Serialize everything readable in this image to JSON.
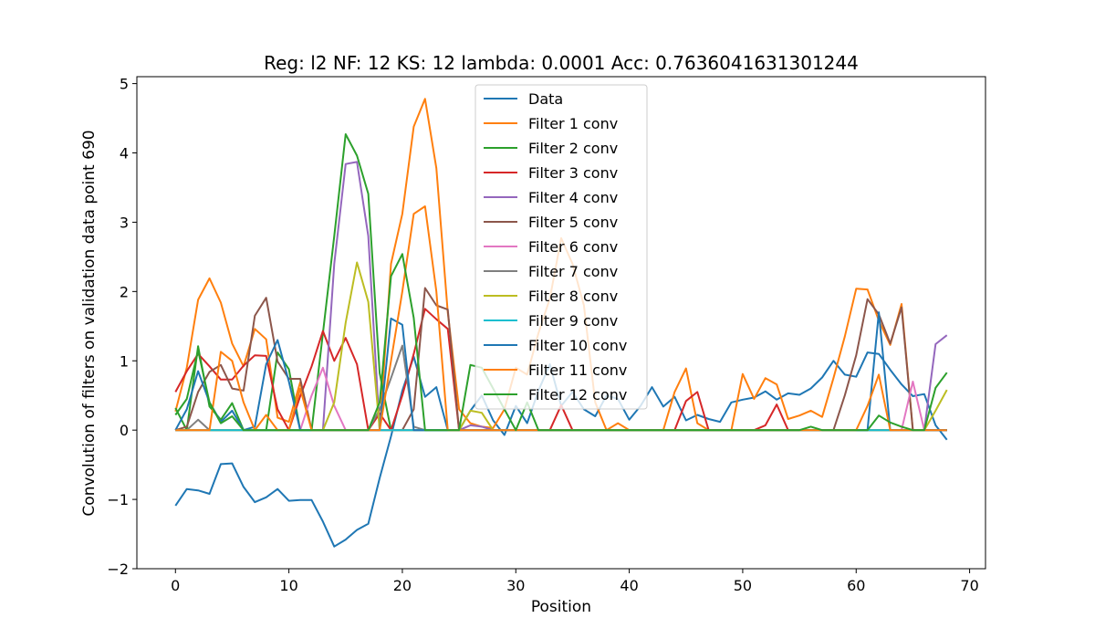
{
  "chart_data": {
    "type": "line",
    "title": "Reg: l2  NF: 12  KS: 12  lambda: 0.0001 Acc: 0.7636041631301244",
    "xlabel": "Position",
    "ylabel": "Convolution of filters on validation data point 690",
    "xlim": [
      -3.4,
      71.4
    ],
    "ylim": [
      -2,
      5.1
    ],
    "xticks": [
      0,
      10,
      20,
      30,
      40,
      50,
      60,
      70
    ],
    "yticks": [
      -2,
      -1,
      0,
      1,
      2,
      3,
      4,
      5
    ],
    "legend_position": "upper center",
    "grid": false,
    "series": [
      {
        "name": "Data",
        "color": "#1f77b4",
        "values": [
          -1.09,
          -0.85,
          -0.87,
          -0.92,
          -0.49,
          -0.48,
          -0.82,
          -1.04,
          -0.97,
          -0.85,
          -1.02,
          -1.01,
          -1.01,
          -1.32,
          -1.68,
          -1.58,
          -1.44,
          -1.35,
          -0.69,
          -0.09,
          0.57,
          1.06,
          0.48,
          0.62,
          0.0,
          0.0,
          0.28,
          0.5,
          0.14,
          -0.07,
          0.35,
          0.1,
          0.57,
          0.95,
          0.35,
          0.55,
          0.3,
          0.2,
          0.5,
          0.45,
          0.15,
          0.35,
          0.62,
          0.34,
          0.48,
          0.14,
          0.22,
          0.16,
          0.12,
          0.4,
          0.44,
          0.47,
          0.56,
          0.44,
          0.53,
          0.51,
          0.6,
          0.76,
          1.0,
          0.8,
          0.77,
          1.12,
          1.1,
          0.87,
          0.66,
          0.49,
          0.52,
          0.07,
          -0.14
        ]
      },
      {
        "name": "Filter 1 conv",
        "color": "#ff7f0e",
        "values": [
          0.27,
          0.9,
          1.88,
          2.19,
          1.84,
          1.25,
          0.92,
          1.46,
          1.31,
          0.18,
          0.12,
          0.69,
          0.0,
          0.0,
          0.0,
          0.0,
          0.0,
          0.0,
          0.0,
          2.4,
          3.12,
          4.38,
          4.78,
          3.78,
          1.7,
          0.3,
          0.1,
          0.05,
          0.03,
          0.3,
          0.9,
          0.8,
          1.4,
          1.9,
          2.77,
          2.4,
          1.8,
          0.4,
          0.0,
          0.1,
          0.0,
          0.0,
          0.0,
          0.0,
          0.55,
          0.89,
          0.1,
          0.0,
          0.0,
          0.0,
          0.81,
          0.45,
          0.75,
          0.66,
          0.16,
          0.21,
          0.28,
          0.19,
          0.75,
          1.35,
          2.04,
          2.03,
          1.58,
          1.23,
          1.82,
          0.0,
          0.0,
          0.0,
          0.0
        ]
      },
      {
        "name": "Filter 2 conv",
        "color": "#2ca02c",
        "values": [
          0.32,
          0.0,
          1.21,
          0.34,
          0.15,
          0.39,
          0.0,
          0.0,
          0.0,
          1.12,
          0.88,
          0.0,
          0.0,
          1.4,
          2.8,
          4.27,
          3.96,
          3.41,
          0.82,
          0.0,
          0.0,
          0.0,
          0.0,
          0.0,
          0.0,
          0.0,
          0.0,
          0.0,
          0.0,
          0.0,
          0.0,
          0.0,
          0.0,
          0.0,
          0.0,
          0.0,
          0.0,
          0.0,
          0.0,
          0.0,
          0.0,
          0.0,
          0.0,
          0.0,
          0.0,
          0.0,
          0.0,
          0.0,
          0.0,
          0.0,
          0.0,
          0.0,
          0.0,
          0.0,
          0.0,
          0.0,
          0.0,
          0.0,
          0.0,
          0.0,
          0.0,
          0.0,
          0.0,
          0.0,
          0.0,
          0.0,
          0.0,
          0.0,
          0.0
        ]
      },
      {
        "name": "Filter 3 conv",
        "color": "#d62728",
        "values": [
          0.55,
          0.85,
          1.1,
          0.92,
          0.73,
          0.73,
          0.93,
          1.08,
          1.07,
          0.3,
          0.0,
          0.49,
          0.92,
          1.43,
          1.0,
          1.33,
          0.95,
          0.0,
          0.24,
          0.0,
          0.5,
          1.1,
          1.75,
          1.6,
          1.46,
          0.0,
          0.0,
          0.0,
          0.0,
          0.0,
          0.0,
          0.0,
          0.0,
          0.0,
          0.36,
          0.0,
          0.0,
          0.0,
          0.0,
          0.0,
          0.0,
          0.0,
          0.0,
          0.0,
          0.0,
          0.42,
          0.55,
          0.0,
          0.0,
          0.0,
          0.0,
          0.0,
          0.07,
          0.37,
          0.0,
          0.0,
          0.0,
          0.0,
          0.0,
          0.0,
          0.0,
          0.0,
          0.0,
          0.0,
          0.0,
          0.0,
          0.0,
          0.0,
          0.0
        ]
      },
      {
        "name": "Filter 4 conv",
        "color": "#9467bd",
        "values": [
          0.0,
          0.0,
          0.0,
          0.0,
          0.0,
          0.0,
          0.0,
          0.0,
          0.0,
          0.0,
          0.0,
          0.0,
          0.0,
          0.0,
          2.4,
          3.84,
          3.87,
          2.8,
          0.0,
          0.0,
          0.0,
          0.0,
          0.0,
          0.0,
          0.0,
          0.0,
          0.07,
          0.05,
          0.0,
          0.0,
          0.0,
          0.0,
          0.0,
          0.0,
          0.0,
          0.0,
          0.0,
          0.0,
          0.0,
          0.0,
          0.0,
          0.0,
          0.0,
          0.0,
          0.0,
          0.0,
          0.0,
          0.0,
          0.0,
          0.0,
          0.0,
          0.0,
          0.0,
          0.0,
          0.0,
          0.0,
          0.0,
          0.0,
          0.0,
          0.0,
          0.0,
          0.0,
          0.0,
          0.0,
          0.0,
          0.0,
          0.0,
          1.24,
          1.37
        ]
      },
      {
        "name": "Filter 5 conv",
        "color": "#8c564b",
        "values": [
          0.0,
          0.05,
          0.55,
          0.84,
          0.94,
          0.6,
          0.57,
          1.65,
          1.91,
          0.99,
          0.74,
          0.74,
          0.0,
          0.0,
          0.0,
          0.0,
          0.0,
          0.0,
          0.0,
          0.0,
          0.0,
          0.3,
          2.05,
          1.8,
          1.74,
          0.0,
          0.0,
          0.0,
          0.0,
          0.0,
          0.0,
          0.0,
          0.0,
          0.0,
          0.0,
          0.0,
          0.0,
          0.0,
          0.0,
          0.0,
          0.0,
          0.0,
          0.0,
          0.0,
          0.0,
          0.0,
          0.0,
          0.0,
          0.0,
          0.0,
          0.0,
          0.0,
          0.0,
          0.0,
          0.0,
          0.0,
          0.0,
          0.0,
          0.0,
          0.5,
          1.08,
          1.89,
          1.67,
          1.25,
          1.77,
          0.0,
          0.0,
          0.0,
          0.0
        ]
      },
      {
        "name": "Filter 6 conv",
        "color": "#e377c2",
        "values": [
          0.0,
          0.0,
          0.0,
          0.0,
          0.0,
          0.0,
          0.0,
          0.0,
          0.0,
          0.0,
          0.0,
          0.0,
          0.5,
          0.9,
          0.35,
          0.0,
          0.0,
          0.0,
          0.0,
          0.0,
          0.0,
          0.0,
          0.0,
          0.0,
          0.0,
          0.0,
          0.0,
          0.0,
          0.0,
          0.0,
          0.0,
          0.0,
          0.0,
          0.0,
          0.0,
          0.0,
          0.0,
          0.0,
          0.0,
          0.0,
          0.0,
          0.0,
          0.0,
          0.0,
          0.0,
          0.0,
          0.0,
          0.0,
          0.0,
          0.0,
          0.0,
          0.0,
          0.0,
          0.0,
          0.0,
          0.0,
          0.0,
          0.0,
          0.0,
          0.0,
          0.0,
          0.0,
          0.0,
          0.0,
          0.0,
          0.7,
          0.0,
          0.0,
          0.0
        ]
      },
      {
        "name": "Filter 7 conv",
        "color": "#7f7f7f",
        "values": [
          0.0,
          0.0,
          0.15,
          0.0,
          0.0,
          0.0,
          0.0,
          0.0,
          0.0,
          0.0,
          0.0,
          0.0,
          0.0,
          0.0,
          0.0,
          0.0,
          0.0,
          0.0,
          0.3,
          0.75,
          1.22,
          0.05,
          0.0,
          0.0,
          0.0,
          0.0,
          0.0,
          0.0,
          0.0,
          0.0,
          0.0,
          0.0,
          0.0,
          0.0,
          0.0,
          0.0,
          0.0,
          0.0,
          0.0,
          0.0,
          0.0,
          0.0,
          0.0,
          0.0,
          0.0,
          0.0,
          0.0,
          0.0,
          0.0,
          0.0,
          0.0,
          0.0,
          0.0,
          0.0,
          0.0,
          0.0,
          0.0,
          0.0,
          0.0,
          0.0,
          0.0,
          0.0,
          0.0,
          0.0,
          0.0,
          0.0,
          0.0,
          0.0,
          0.0
        ]
      },
      {
        "name": "Filter 8 conv",
        "color": "#bcbd22",
        "values": [
          0.0,
          0.0,
          0.0,
          0.0,
          0.0,
          0.0,
          0.0,
          0.0,
          0.0,
          0.0,
          0.0,
          0.0,
          0.0,
          0.0,
          0.4,
          1.55,
          2.42,
          1.85,
          0.0,
          0.0,
          0.0,
          0.0,
          0.0,
          0.0,
          0.0,
          0.0,
          0.28,
          0.25,
          0.0,
          0.0,
          0.0,
          0.0,
          0.0,
          0.0,
          0.0,
          0.0,
          0.0,
          0.0,
          0.0,
          0.0,
          0.0,
          0.0,
          0.0,
          0.0,
          0.0,
          0.0,
          0.0,
          0.0,
          0.0,
          0.0,
          0.0,
          0.0,
          0.0,
          0.0,
          0.0,
          0.0,
          0.0,
          0.0,
          0.0,
          0.0,
          0.0,
          0.0,
          0.0,
          0.0,
          0.0,
          0.0,
          0.0,
          0.28,
          0.58
        ]
      },
      {
        "name": "Filter 9 conv",
        "color": "#17becf",
        "values": [
          0.0,
          0.0,
          0.0,
          0.0,
          0.0,
          0.0,
          0.0,
          0.0,
          0.0,
          0.0,
          0.0,
          0.0,
          0.0,
          0.0,
          0.0,
          0.0,
          0.0,
          0.0,
          0.0,
          0.0,
          0.0,
          0.0,
          0.0,
          0.0,
          0.0,
          0.0,
          0.0,
          0.0,
          0.0,
          0.0,
          0.0,
          0.0,
          0.0,
          0.0,
          0.0,
          0.0,
          0.0,
          0.0,
          0.0,
          0.0,
          0.0,
          0.0,
          0.0,
          0.0,
          0.0,
          0.0,
          0.0,
          0.0,
          0.0,
          0.0,
          0.0,
          0.0,
          0.0,
          0.0,
          0.0,
          0.0,
          0.0,
          0.0,
          0.0,
          0.0,
          0.0,
          0.0,
          0.0,
          0.0,
          0.0,
          0.0,
          0.0,
          0.0,
          0.0
        ]
      },
      {
        "name": "Filter 10 conv",
        "color": "#1f77b4",
        "values": [
          0.0,
          0.3,
          0.85,
          0.4,
          0.12,
          0.28,
          0.0,
          0.05,
          0.95,
          1.3,
          0.7,
          0.0,
          0.0,
          0.0,
          0.0,
          0.0,
          0.0,
          0.0,
          0.0,
          1.61,
          1.52,
          0.0,
          0.0,
          0.0,
          0.0,
          0.0,
          0.0,
          0.0,
          0.0,
          0.0,
          0.0,
          0.0,
          0.0,
          0.0,
          0.0,
          0.0,
          0.0,
          0.0,
          0.0,
          0.0,
          0.0,
          0.0,
          0.0,
          0.0,
          0.0,
          0.0,
          0.0,
          0.0,
          0.0,
          0.0,
          0.0,
          0.0,
          0.0,
          0.0,
          0.0,
          0.0,
          0.0,
          0.0,
          0.0,
          0.0,
          0.0,
          0.0,
          1.7,
          0.0,
          0.0,
          0.0,
          0.0,
          0.0,
          0.0
        ]
      },
      {
        "name": "Filter 11 conv",
        "color": "#ff7f0e",
        "values": [
          0.0,
          0.0,
          0.0,
          0.0,
          1.13,
          1.0,
          0.4,
          0.0,
          0.22,
          0.0,
          0.0,
          0.6,
          0.0,
          0.0,
          0.0,
          0.0,
          0.0,
          0.0,
          0.0,
          1.0,
          2.0,
          3.12,
          3.23,
          2.0,
          0.0,
          0.0,
          0.0,
          0.0,
          0.0,
          0.0,
          0.0,
          0.0,
          0.0,
          0.0,
          0.0,
          0.0,
          0.0,
          0.0,
          0.0,
          0.0,
          0.0,
          0.0,
          0.0,
          0.0,
          0.0,
          0.0,
          0.0,
          0.0,
          0.0,
          0.0,
          0.0,
          0.0,
          0.0,
          0.0,
          0.0,
          0.0,
          0.0,
          0.0,
          0.0,
          0.0,
          0.0,
          0.35,
          0.8,
          0.0,
          0.0,
          0.0,
          0.0,
          0.0,
          0.0
        ]
      },
      {
        "name": "Filter 12 conv",
        "color": "#2ca02c",
        "values": [
          0.22,
          0.45,
          1.15,
          0.4,
          0.1,
          0.2,
          0.0,
          0.0,
          0.0,
          0.0,
          0.0,
          0.0,
          0.0,
          0.0,
          0.0,
          0.0,
          0.0,
          0.0,
          0.4,
          2.22,
          2.54,
          1.62,
          0.0,
          0.0,
          0.0,
          0.0,
          0.94,
          0.9,
          0.6,
          0.3,
          0.0,
          0.4,
          0.0,
          0.0,
          0.0,
          0.0,
          0.0,
          0.0,
          0.0,
          0.0,
          0.0,
          0.0,
          0.0,
          0.0,
          0.0,
          0.0,
          0.0,
          0.0,
          0.0,
          0.0,
          0.0,
          0.0,
          0.0,
          0.0,
          0.0,
          0.0,
          0.05,
          0.0,
          0.0,
          0.0,
          0.0,
          0.0,
          0.21,
          0.11,
          0.05,
          0.0,
          0.0,
          0.61,
          0.83
        ]
      }
    ]
  }
}
